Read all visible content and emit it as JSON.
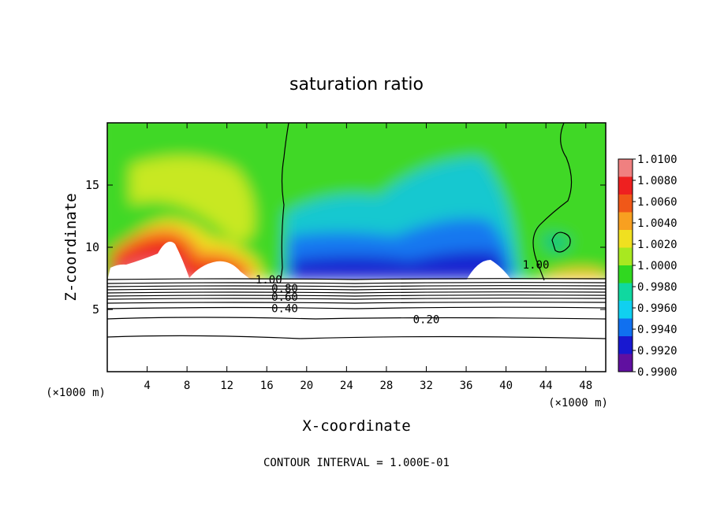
{
  "chart_data": {
    "type": "heatmap",
    "title": "saturation ratio",
    "xlabel": "X-coordinate",
    "ylabel": "Z-coordinate",
    "x_units": "(×1000 m)",
    "x_units_right": "(×1000 m)",
    "footer": "CONTOUR INTERVAL = 1.000E-01",
    "xlim": [
      0,
      50
    ],
    "ylim": [
      0,
      20
    ],
    "x_ticks": [
      4,
      8,
      12,
      16,
      20,
      24,
      28,
      32,
      36,
      40,
      44,
      48
    ],
    "y_ticks": [
      5,
      10,
      15
    ],
    "colorbar": {
      "levels": [
        "1.0100",
        "1.0080",
        "1.0060",
        "1.0040",
        "1.0020",
        "1.0000",
        "0.9980",
        "0.9960",
        "0.9940",
        "0.9920",
        "0.9900"
      ],
      "colors": [
        "#f08080",
        "#ee2020",
        "#f05818",
        "#f8a020",
        "#f0e020",
        "#a8e820",
        "#30d820",
        "#10d8a0",
        "#10d0f0",
        "#1070f0",
        "#1818d0",
        "#6010a0"
      ]
    },
    "contour_labels": [
      {
        "text": "1.00",
        "x": 16.2,
        "z": 7.4
      },
      {
        "text": "0.80",
        "x": 17.8,
        "z": 6.7
      },
      {
        "text": "0.60",
        "x": 17.8,
        "z": 6.0
      },
      {
        "text": "0.40",
        "x": 17.8,
        "z": 5.1
      },
      {
        "text": "0.20",
        "x": 32.0,
        "z": 4.2
      },
      {
        "text": "1.00",
        "x": 43.0,
        "z": 8.6
      }
    ]
  }
}
